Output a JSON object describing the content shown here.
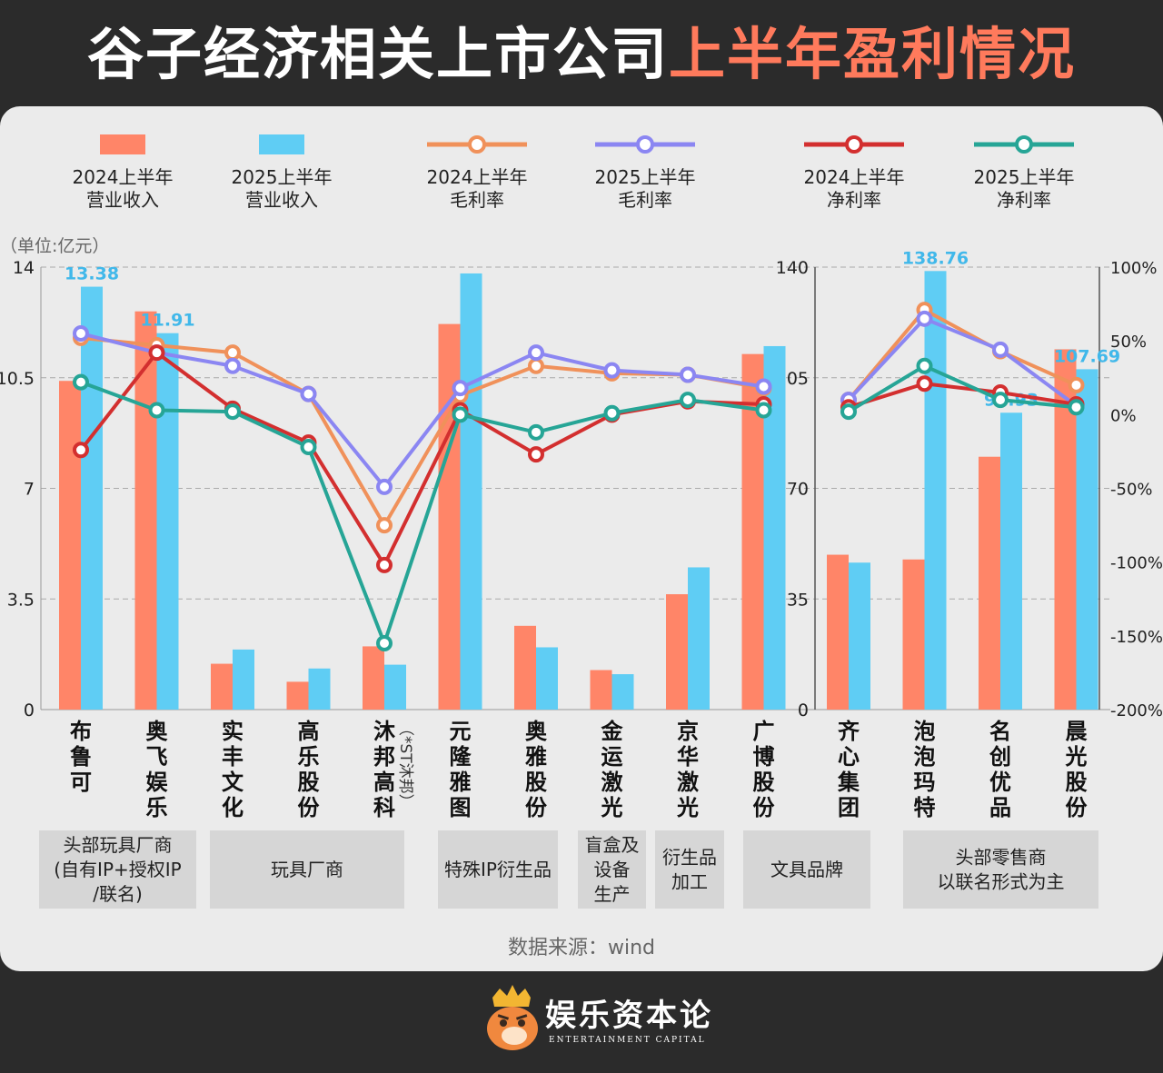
{
  "title": {
    "part1": "谷子经济相关上市公司",
    "part2": "上半年盈利情况"
  },
  "colors": {
    "rev2024": "#ff8568",
    "rev2025": "#5fcdf4",
    "gm2024": "#f0915a",
    "gm2025": "#8b86f2",
    "nm2024": "#d32f2f",
    "nm2025": "#26a596"
  },
  "legend": [
    {
      "key": "rev2024",
      "kind": "bar",
      "line1": "2024上半年",
      "line2": "营业收入"
    },
    {
      "key": "rev2025",
      "kind": "bar",
      "line1": "2025上半年",
      "line2": "营业收入"
    },
    {
      "key": "gm2024",
      "kind": "line",
      "line1": "2024上半年",
      "line2": "毛利率"
    },
    {
      "key": "gm2025",
      "kind": "line",
      "line1": "2025上半年",
      "line2": "毛利率"
    },
    {
      "key": "nm2024",
      "kind": "line",
      "line1": "2024上半年",
      "line2": "净利率"
    },
    {
      "key": "nm2025",
      "kind": "line",
      "line1": "2025上半年",
      "line2": "净利率"
    }
  ],
  "unit_label": "（单位:亿元）",
  "source": "数据来源：wind",
  "brand": {
    "cn": "娱乐资本论",
    "en": "ENTERTAINMENT CAPITAL"
  },
  "chart_data": {
    "type": "bar+line",
    "panels": [
      {
        "name": "left",
        "ylim": [
          0,
          14
        ],
        "yticks": [
          "0",
          "3.5",
          "7",
          "10.5",
          "14"
        ],
        "companies": [
          "布鲁可",
          "奥飞娱乐",
          "实丰文化",
          "高乐股份",
          "沐邦高科",
          "元隆雅图",
          "奥雅股份",
          "金运激光",
          "京华激光",
          "广博股份"
        ],
        "sub_notes": [
          "",
          "",
          "",
          "",
          "（*ST沐邦）",
          "",
          "",
          "",
          "",
          ""
        ],
        "rev_2024": [
          10.4,
          12.6,
          1.45,
          0.88,
          2.0,
          12.2,
          2.65,
          1.25,
          3.65,
          11.25
        ],
        "rev_2025": [
          13.38,
          11.91,
          1.9,
          1.3,
          1.42,
          13.8,
          1.97,
          1.12,
          4.5,
          11.5
        ],
        "value_labels_2025": [
          "13.38",
          "11.91",
          "",
          "",
          "",
          "",
          "",
          "",
          "",
          ""
        ]
      },
      {
        "name": "right",
        "ylim": [
          0,
          140
        ],
        "yticks": [
          "0",
          "35",
          "70",
          "105",
          "140"
        ],
        "companies": [
          "齐心集团",
          "泡泡玛特",
          "名创优品",
          "晨光股份"
        ],
        "sub_notes": [
          "",
          "",
          "",
          ""
        ],
        "rev_2024": [
          49,
          47.5,
          80,
          114
        ],
        "rev_2025": [
          46.5,
          138.76,
          93.93,
          107.69
        ],
        "value_labels_2025": [
          "",
          "138.76",
          "93.93",
          "107.69"
        ]
      }
    ],
    "secondary_axis": {
      "ylim": [
        -200,
        100
      ],
      "yticks": [
        "100%",
        "50%",
        "0%",
        "-50%",
        "-100%",
        "-150%",
        "-200%"
      ]
    },
    "gross_margin_2024": [
      52,
      47,
      42,
      14,
      -75,
      13,
      33,
      28,
      27,
      18,
      10,
      71,
      43,
      20
    ],
    "gross_margin_2025": [
      55,
      42,
      33,
      14,
      -49,
      18,
      42,
      30,
      27,
      19,
      10,
      65,
      44,
      6
    ],
    "net_margin_2024": [
      -24,
      42,
      4,
      -19,
      -102,
      3,
      -27,
      0,
      9,
      7,
      5,
      21,
      15,
      7
    ],
    "net_margin_2025": [
      22,
      3,
      2,
      -22,
      -155,
      0,
      -12,
      1,
      10,
      3,
      2,
      33,
      10,
      5
    ],
    "categories": [
      {
        "label": "头部玩具厂商\n(自有IP+授权IP\n/联名)"
      },
      {
        "label": "玩具厂商"
      },
      {
        "label": "特殊IP衍生品"
      },
      {
        "label": "盲盒及\n设备\n生产"
      },
      {
        "label": "衍生品\n加工"
      },
      {
        "label": "文具品牌"
      },
      {
        "label": "头部零售商\n以联名形式为主"
      }
    ]
  }
}
